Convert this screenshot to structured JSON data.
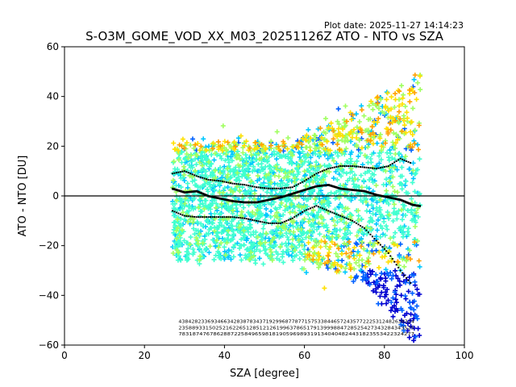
{
  "figure": {
    "plot_date": "Plot date: 2025-11-27 14:14:23"
  },
  "chart_data": {
    "type": "scatter",
    "title": "S-O3M_GOME_VOD_XX_M03_20251126Z ATO - NTO vs SZA",
    "xlabel": "SZA [degree]",
    "ylabel": "ATO - NTO [DU]",
    "xlim": [
      0,
      100
    ],
    "ylim": [
      -60,
      60
    ],
    "x_ticks": [
      "0",
      "20",
      "40",
      "60",
      "80",
      "100"
    ],
    "y_ticks": [
      "−60",
      "−40",
      "−20",
      "0",
      "20",
      "40",
      "60"
    ],
    "x_tick_values": [
      0,
      20,
      40,
      60,
      80,
      100
    ],
    "y_tick_values": [
      -60,
      -40,
      -20,
      0,
      20,
      40,
      60
    ],
    "grid": false,
    "legend": "none",
    "reference_line_y": 0,
    "scatter_sza_range": [
      27,
      89
    ],
    "scatter_colormap": [
      "#0000d0",
      "#0060ff",
      "#00c8ff",
      "#40ffd0",
      "#a0ff60",
      "#ffe000",
      "#ffa000"
    ],
    "series": [
      {
        "style": "dotted",
        "color": "#000000",
        "x": [
          27,
          30,
          33,
          36,
          39,
          42,
          45,
          48,
          51,
          54,
          57,
          60,
          63,
          66,
          69,
          72,
          75,
          78,
          81,
          84,
          87
        ],
        "y": [
          9,
          10,
          8,
          6.5,
          6,
          5,
          4.5,
          3.5,
          3,
          3,
          3.5,
          6,
          9,
          11,
          12,
          12,
          11.5,
          11,
          12,
          15,
          13
        ]
      },
      {
        "style": "solid-markers",
        "color": "#000000",
        "x": [
          27,
          30,
          33,
          36,
          39,
          42,
          45,
          48,
          51,
          54,
          57,
          60,
          63,
          66,
          69,
          72,
          75,
          78,
          81,
          84,
          87,
          89
        ],
        "y": [
          3,
          1.5,
          2,
          0,
          -1,
          -2,
          -2.5,
          -2.5,
          -1.5,
          -0.5,
          1,
          2.5,
          4,
          4.5,
          3,
          2.5,
          2,
          0.5,
          -0.5,
          -1.5,
          -3.5,
          -4
        ]
      },
      {
        "style": "dotted",
        "color": "#000000",
        "x": [
          27,
          30,
          33,
          36,
          39,
          42,
          45,
          48,
          51,
          54,
          57,
          60,
          63,
          66,
          69,
          72,
          75,
          78,
          81,
          84,
          87
        ],
        "y": [
          -6,
          -8,
          -8.5,
          -8.5,
          -8.5,
          -8.5,
          -9,
          -10,
          -11,
          -11,
          -9,
          -6,
          -4,
          -6,
          -8,
          -10,
          -13,
          -18,
          -23,
          -30,
          -36
        ]
      }
    ],
    "count_rows": [
      "4384282336934663428387834371929968778771575338446572435772225312482638324",
      "2358893315025216226512851212619963786517913999884728525427343284343525",
      "78318747678628872258496598181905969893191340404824431823553422324277"
    ]
  }
}
